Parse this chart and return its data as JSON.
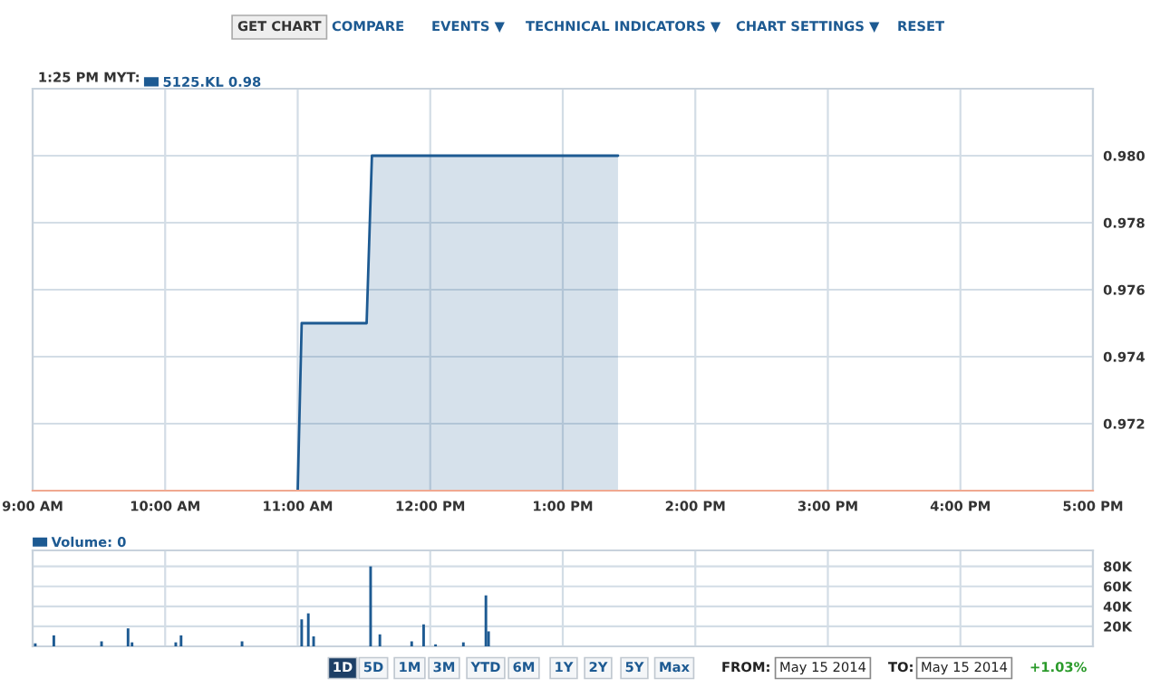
{
  "chart_data": [
    {
      "type": "area",
      "legend_title": "1:25 PM MYT:",
      "legend": "top left",
      "grid": true,
      "x": [
        11.0,
        11.03,
        11.52,
        11.56,
        13.4167
      ],
      "series": [
        {
          "name": "5125.KL 0.98",
          "color": "#1d5a92",
          "values": [
            0.97,
            0.975,
            0.975,
            0.98,
            0.98
          ]
        }
      ],
      "xlim": [
        9,
        17
      ],
      "xticks": [
        {
          "value": 9,
          "label": "9:00 AM"
        },
        {
          "value": 10,
          "label": "10:00 AM"
        },
        {
          "value": 11,
          "label": "11:00 AM"
        },
        {
          "value": 12,
          "label": "12:00 PM"
        },
        {
          "value": 13,
          "label": "1:00 PM"
        },
        {
          "value": 14,
          "label": "2:00 PM"
        },
        {
          "value": 15,
          "label": "3:00 PM"
        },
        {
          "value": 16,
          "label": "4:00 PM"
        },
        {
          "value": 17,
          "label": "5:00 PM"
        }
      ],
      "ylim": [
        0.97,
        0.982
      ],
      "yticks": [
        {
          "value": 0.972,
          "label": "0.972"
        },
        {
          "value": 0.974,
          "label": "0.974"
        },
        {
          "value": 0.976,
          "label": "0.976"
        },
        {
          "value": 0.978,
          "label": "0.978"
        },
        {
          "value": 0.98,
          "label": "0.980"
        }
      ],
      "annotations": [
        "GET CHART",
        "COMPARE",
        "EVENTS ▼",
        "TECHNICAL INDICATORS ▼",
        "CHART SETTINGS ▼",
        "RESET"
      ]
    },
    {
      "type": "bar",
      "legend": "top left",
      "grid": true,
      "tick_labels": "y",
      "x": [
        9.02,
        9.16,
        9.52,
        9.72,
        9.75,
        10.08,
        10.12,
        10.58,
        11.03,
        11.08,
        11.12,
        11.55,
        11.62,
        11.86,
        11.95,
        12.04,
        12.25,
        12.42,
        12.44
      ],
      "series": [
        {
          "name": "Volume: 0",
          "color": "#1d5a92",
          "values": [
            3000,
            11000,
            5000,
            18000,
            4000,
            4000,
            11000,
            5000,
            27000,
            33000,
            10000,
            80000,
            12000,
            5000,
            22000,
            2000,
            4000,
            51000,
            15000
          ]
        }
      ],
      "xlim": [
        9,
        17
      ],
      "xticks": [
        {
          "value": 9,
          "label": null
        },
        {
          "value": 10,
          "label": null
        },
        {
          "value": 11,
          "label": null
        },
        {
          "value": 12,
          "label": null
        },
        {
          "value": 13,
          "label": null
        },
        {
          "value": 14,
          "label": null
        },
        {
          "value": 15,
          "label": null
        },
        {
          "value": 16,
          "label": null
        },
        {
          "value": 17,
          "label": null
        }
      ],
      "ylim": [
        0,
        96000
      ],
      "yticks": [
        {
          "value": 20000,
          "label": "20K"
        },
        {
          "value": 40000,
          "label": "40K"
        },
        {
          "value": 60000,
          "label": "60K"
        },
        {
          "value": 80000,
          "label": "80K"
        }
      ],
      "annotations": [
        "1D",
        "5D",
        "1M",
        "3M",
        "YTD",
        "6M",
        "1Y",
        "2Y",
        "5Y",
        "Max",
        "FROM:",
        "May 15 2014",
        "TO:",
        "May 15 2014",
        "+1.03%"
      ]
    }
  ]
}
